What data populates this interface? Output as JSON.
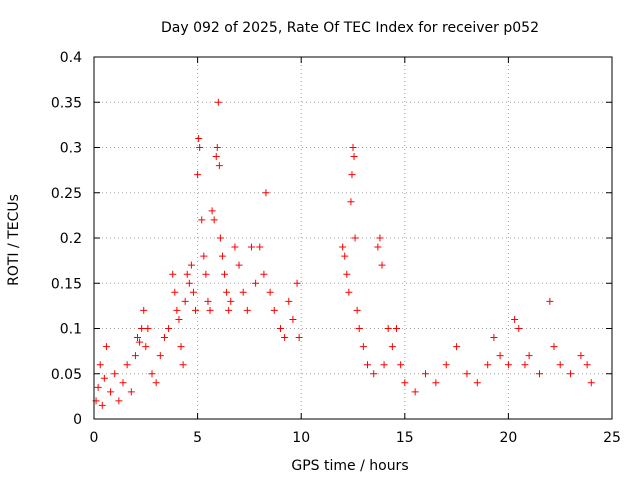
{
  "chart_data": {
    "type": "scatter",
    "title": "Day 092 of 2025, Rate Of TEC Index for receiver p052",
    "xlabel": "GPS time / hours",
    "ylabel": "ROTI / TECUs",
    "xlim": [
      0,
      25
    ],
    "ylim": [
      0,
      0.4
    ],
    "x_ticks": [
      0,
      5,
      10,
      15,
      20,
      25
    ],
    "y_ticks": [
      0,
      0.05,
      0.1,
      0.15,
      0.2,
      0.25,
      0.3,
      0.35,
      0.4
    ],
    "x_tick_labels": [
      "0",
      "5",
      "10",
      "15",
      "20",
      "25"
    ],
    "y_tick_labels": [
      "0",
      "0.05",
      "0.1",
      "0.15",
      "0.2",
      "0.25",
      "0.3",
      "0.35",
      "0.4"
    ],
    "grid": true,
    "marker": "+",
    "series_color": "#ff0000",
    "series": [
      {
        "name": "ROTI",
        "points": [
          [
            0.1,
            0.02
          ],
          [
            0.2,
            0.035
          ],
          [
            0.3,
            0.06
          ],
          [
            0.4,
            0.015
          ],
          [
            0.5,
            0.045
          ],
          [
            0.6,
            0.08
          ],
          [
            0.8,
            0.03
          ],
          [
            1.0,
            0.05
          ],
          [
            1.2,
            0.02
          ],
          [
            1.4,
            0.04
          ],
          [
            1.6,
            0.06
          ],
          [
            1.8,
            0.03
          ],
          [
            2.0,
            0.07
          ],
          [
            2.1,
            0.09
          ],
          [
            2.2,
            0.085
          ],
          [
            2.3,
            0.1
          ],
          [
            2.4,
            0.12
          ],
          [
            2.5,
            0.08
          ],
          [
            2.6,
            0.1
          ],
          [
            2.8,
            0.05
          ],
          [
            3.0,
            0.04
          ],
          [
            3.2,
            0.07
          ],
          [
            3.4,
            0.09
          ],
          [
            3.6,
            0.1
          ],
          [
            3.8,
            0.16
          ],
          [
            3.9,
            0.14
          ],
          [
            4.0,
            0.12
          ],
          [
            4.1,
            0.11
          ],
          [
            4.2,
            0.08
          ],
          [
            4.3,
            0.06
          ],
          [
            4.4,
            0.13
          ],
          [
            4.5,
            0.16
          ],
          [
            4.6,
            0.15
          ],
          [
            4.7,
            0.17
          ],
          [
            4.8,
            0.14
          ],
          [
            4.9,
            0.12
          ],
          [
            5.0,
            0.27
          ],
          [
            5.05,
            0.31
          ],
          [
            5.1,
            0.3
          ],
          [
            5.2,
            0.22
          ],
          [
            5.3,
            0.18
          ],
          [
            5.4,
            0.16
          ],
          [
            5.5,
            0.13
          ],
          [
            5.6,
            0.12
          ],
          [
            5.7,
            0.23
          ],
          [
            5.8,
            0.22
          ],
          [
            5.9,
            0.29
          ],
          [
            5.95,
            0.3
          ],
          [
            6.0,
            0.35
          ],
          [
            6.05,
            0.28
          ],
          [
            6.1,
            0.2
          ],
          [
            6.2,
            0.18
          ],
          [
            6.3,
            0.16
          ],
          [
            6.4,
            0.14
          ],
          [
            6.5,
            0.12
          ],
          [
            6.6,
            0.13
          ],
          [
            6.8,
            0.19
          ],
          [
            7.0,
            0.17
          ],
          [
            7.2,
            0.14
          ],
          [
            7.4,
            0.12
          ],
          [
            7.6,
            0.19
          ],
          [
            7.8,
            0.15
          ],
          [
            8.0,
            0.19
          ],
          [
            8.2,
            0.16
          ],
          [
            8.3,
            0.25
          ],
          [
            8.5,
            0.14
          ],
          [
            8.7,
            0.12
          ],
          [
            9.0,
            0.1
          ],
          [
            9.2,
            0.09
          ],
          [
            9.4,
            0.13
          ],
          [
            9.6,
            0.11
          ],
          [
            9.8,
            0.15
          ],
          [
            9.9,
            0.09
          ],
          [
            12.0,
            0.19
          ],
          [
            12.1,
            0.18
          ],
          [
            12.2,
            0.16
          ],
          [
            12.3,
            0.14
          ],
          [
            12.4,
            0.24
          ],
          [
            12.45,
            0.27
          ],
          [
            12.5,
            0.3
          ],
          [
            12.55,
            0.29
          ],
          [
            12.6,
            0.2
          ],
          [
            12.7,
            0.12
          ],
          [
            12.8,
            0.1
          ],
          [
            13.0,
            0.08
          ],
          [
            13.2,
            0.06
          ],
          [
            13.5,
            0.05
          ],
          [
            13.7,
            0.19
          ],
          [
            13.8,
            0.2
          ],
          [
            13.9,
            0.17
          ],
          [
            14.0,
            0.06
          ],
          [
            14.2,
            0.1
          ],
          [
            14.4,
            0.08
          ],
          [
            14.6,
            0.1
          ],
          [
            14.8,
            0.06
          ],
          [
            15.0,
            0.04
          ],
          [
            15.5,
            0.03
          ],
          [
            16.0,
            0.05
          ],
          [
            16.5,
            0.04
          ],
          [
            17.0,
            0.06
          ],
          [
            17.5,
            0.08
          ],
          [
            18.0,
            0.05
          ],
          [
            18.5,
            0.04
          ],
          [
            19.0,
            0.06
          ],
          [
            19.3,
            0.09
          ],
          [
            19.6,
            0.07
          ],
          [
            20.0,
            0.06
          ],
          [
            20.3,
            0.11
          ],
          [
            20.5,
            0.1
          ],
          [
            20.8,
            0.06
          ],
          [
            21.0,
            0.07
          ],
          [
            21.5,
            0.05
          ],
          [
            22.0,
            0.13
          ],
          [
            22.2,
            0.08
          ],
          [
            22.5,
            0.06
          ],
          [
            23.0,
            0.05
          ],
          [
            23.5,
            0.07
          ],
          [
            23.8,
            0.06
          ],
          [
            24.0,
            0.04
          ]
        ]
      }
    ]
  }
}
